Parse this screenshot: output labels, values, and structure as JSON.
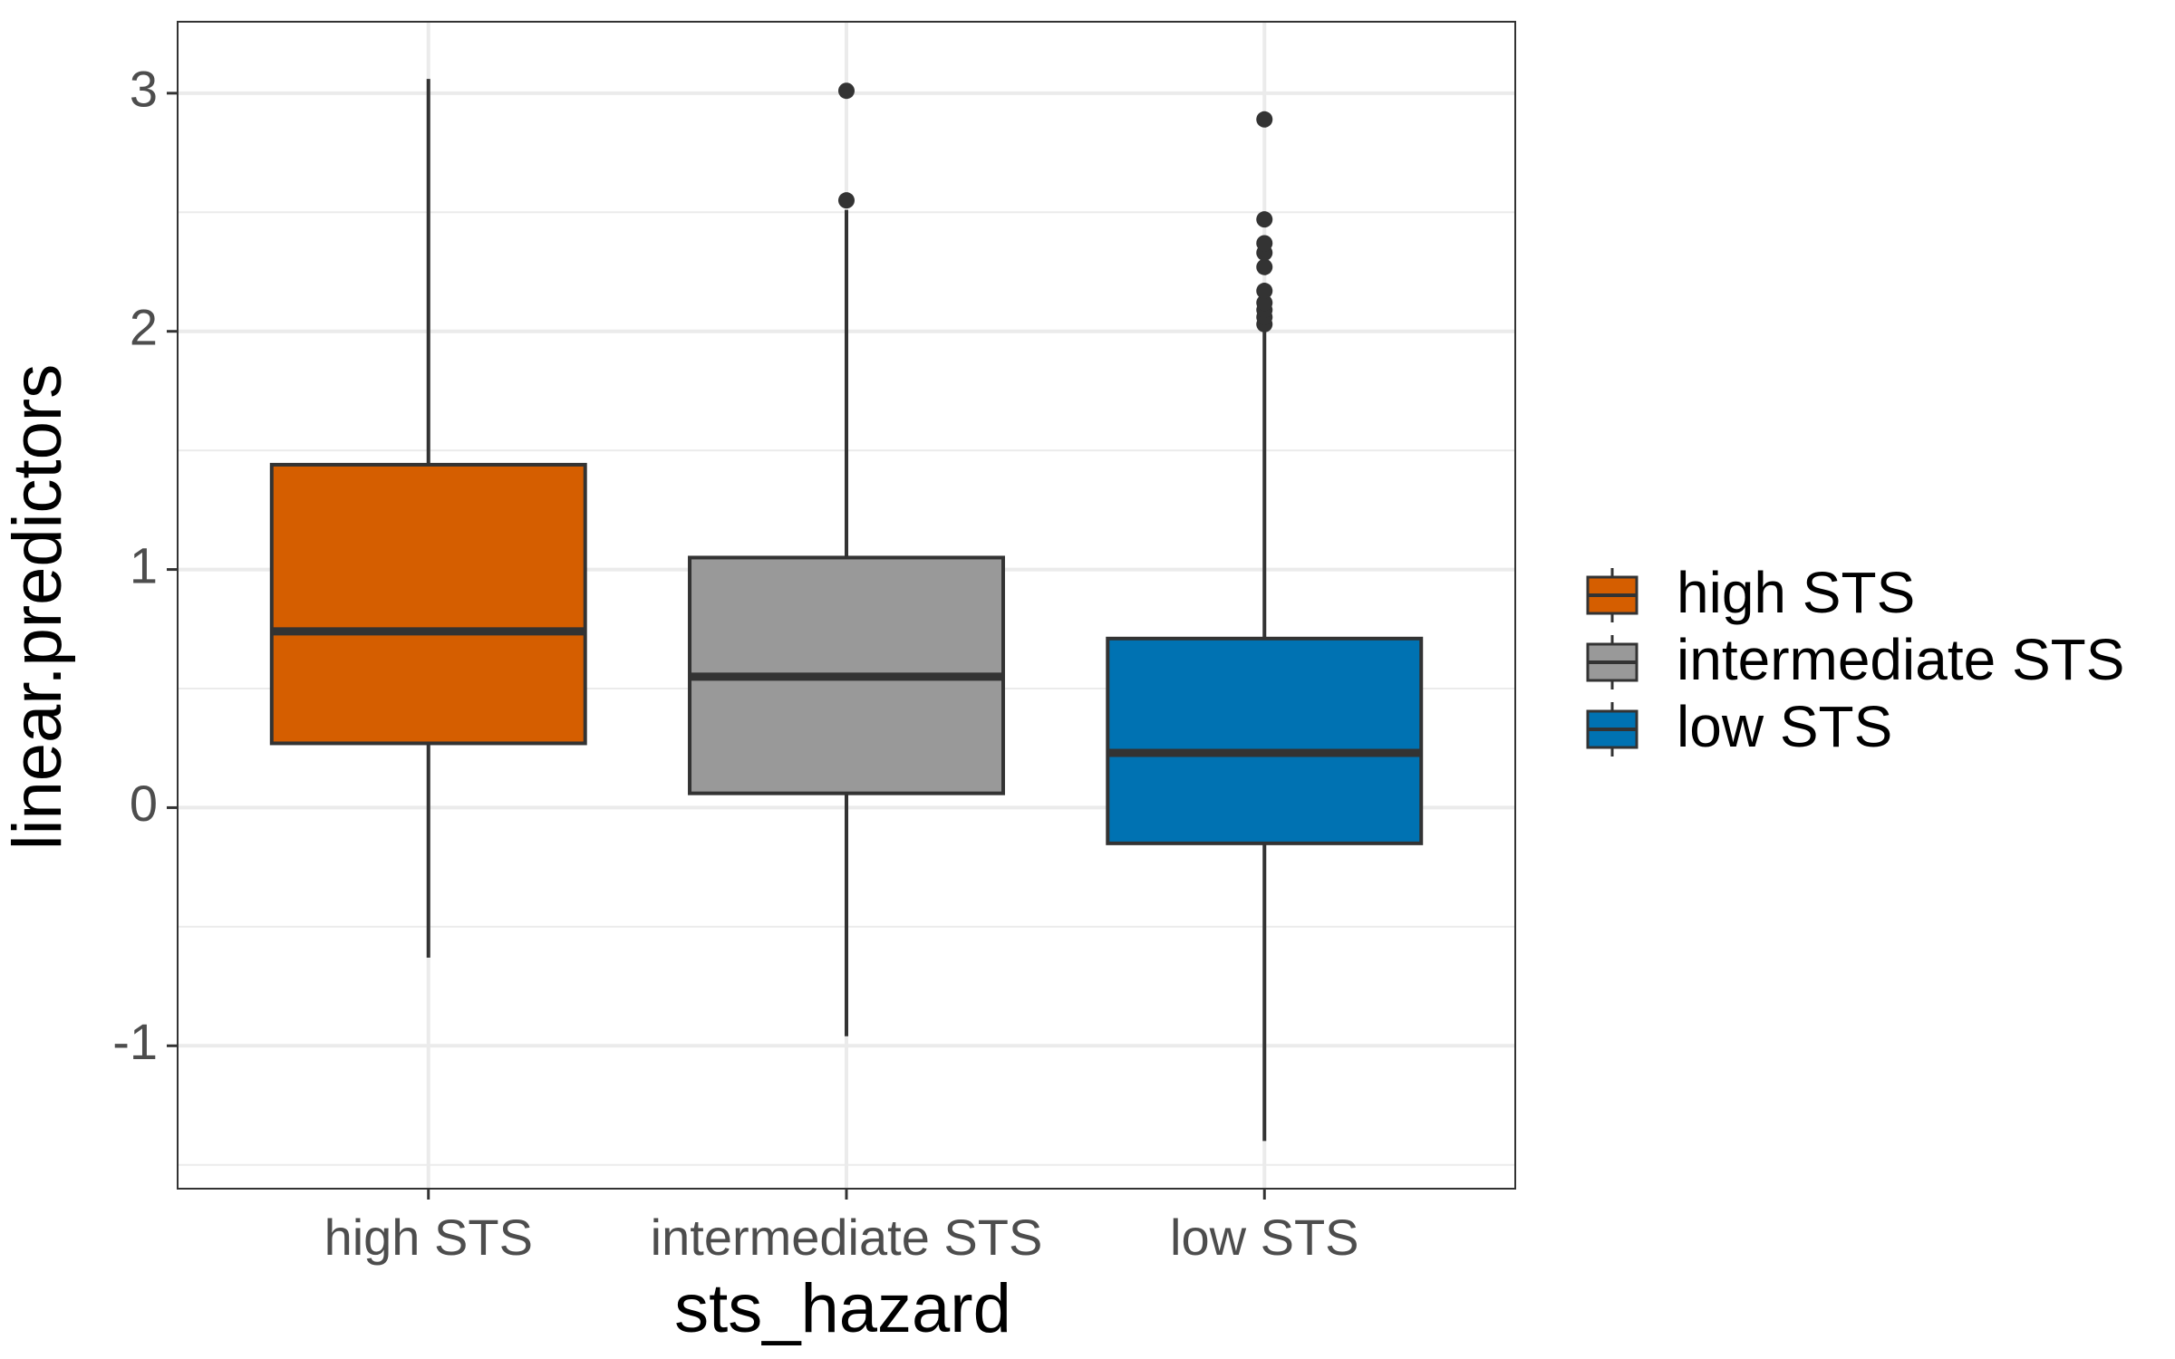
{
  "chart_data": {
    "type": "box",
    "xlabel": "sts_hazard",
    "ylabel": "linear.predictors",
    "categories": [
      "high STS",
      "intermediate STS",
      "low STS"
    ],
    "ylim": [
      -1.6,
      3.3
    ],
    "yticks": [
      -1,
      0,
      1,
      2,
      3
    ],
    "ytick_labels": [
      "-1",
      "0",
      "1",
      "2",
      "3"
    ],
    "grid": true,
    "legend": {
      "position": "right",
      "entries": [
        "high STS",
        "intermediate STS",
        "low STS"
      ]
    },
    "series": [
      {
        "category": "high STS",
        "color": "#D55E00",
        "whisker_low": -0.63,
        "q1": 0.27,
        "median": 0.74,
        "q3": 1.44,
        "whisker_high": 3.06,
        "outliers": []
      },
      {
        "category": "intermediate STS",
        "color": "#999999",
        "whisker_low": -0.96,
        "q1": 0.06,
        "median": 0.55,
        "q3": 1.05,
        "whisker_high": 2.51,
        "outliers": [
          2.55,
          3.01
        ]
      },
      {
        "category": "low STS",
        "color": "#0072B2",
        "whisker_low": -1.4,
        "q1": -0.15,
        "median": 0.23,
        "q3": 0.71,
        "whisker_high": 2.01,
        "outliers": [
          2.03,
          2.06,
          2.09,
          2.12,
          2.17,
          2.27,
          2.33,
          2.37,
          2.47,
          2.89
        ]
      }
    ]
  }
}
